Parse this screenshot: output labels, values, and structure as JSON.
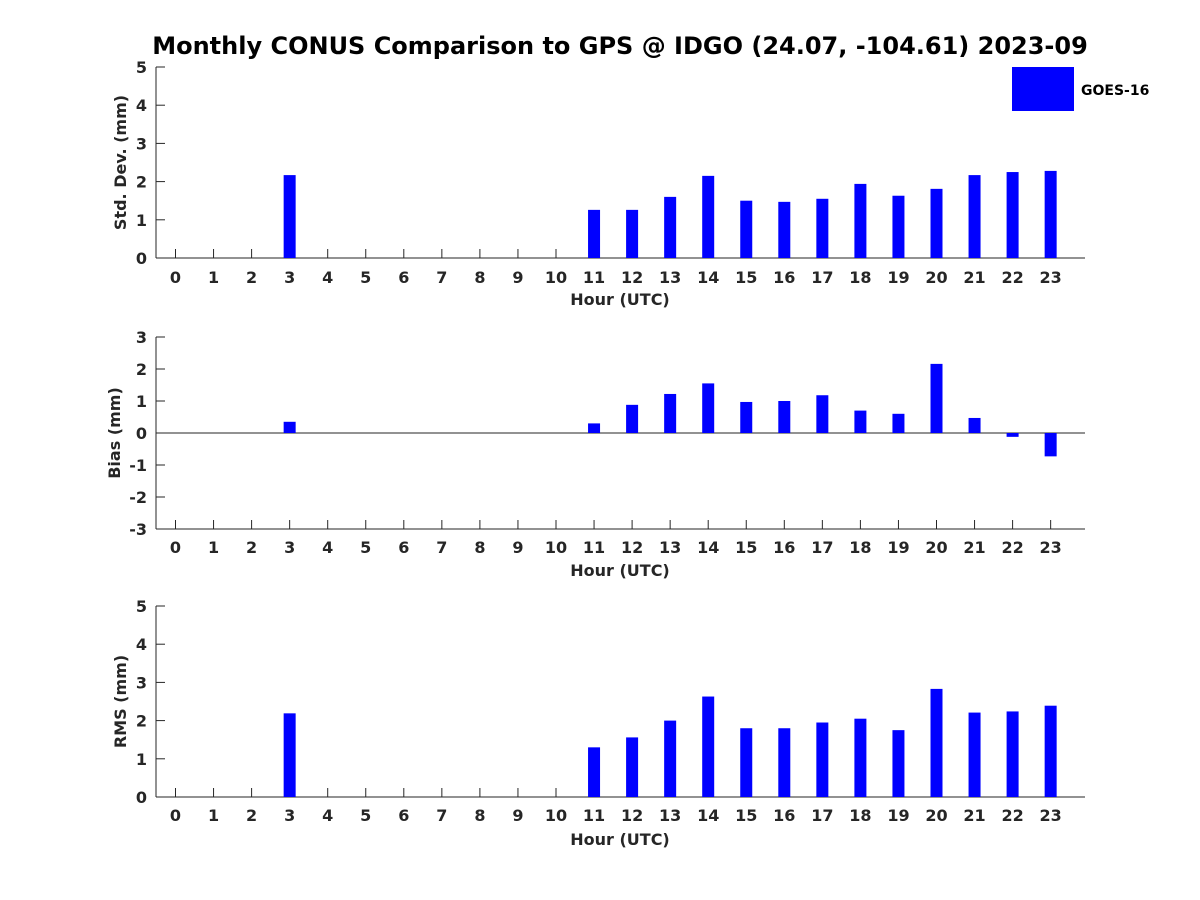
{
  "chart_data": [
    {
      "type": "bar",
      "title": "Monthly CONUS Comparison to GPS @ IDGO (24.07, -104.61) 2023-09",
      "xlabel": "Hour (UTC)",
      "ylabel": "Std. Dev. (mm)",
      "categories": [
        "0",
        "1",
        "2",
        "3",
        "4",
        "5",
        "6",
        "7",
        "8",
        "9",
        "10",
        "11",
        "12",
        "13",
        "14",
        "15",
        "16",
        "17",
        "18",
        "19",
        "20",
        "21",
        "22",
        "23"
      ],
      "ylim": [
        0,
        5
      ],
      "yticks": [
        "0",
        "1",
        "2",
        "3",
        "4",
        "5"
      ],
      "series": [
        {
          "name": "GOES-16",
          "color": "#0000ff",
          "values": [
            null,
            null,
            null,
            2.17,
            null,
            null,
            null,
            null,
            null,
            null,
            null,
            1.26,
            1.26,
            1.6,
            2.15,
            1.5,
            1.47,
            1.55,
            1.94,
            1.63,
            1.81,
            2.17,
            2.25,
            2.28
          ]
        }
      ],
      "legend": {
        "position": "top-right",
        "labels": [
          "GOES-16"
        ]
      }
    },
    {
      "type": "bar",
      "xlabel": "Hour (UTC)",
      "ylabel": "Bias (mm)",
      "categories": [
        "0",
        "1",
        "2",
        "3",
        "4",
        "5",
        "6",
        "7",
        "8",
        "9",
        "10",
        "11",
        "12",
        "13",
        "14",
        "15",
        "16",
        "17",
        "18",
        "19",
        "20",
        "21",
        "22",
        "23"
      ],
      "ylim": [
        -3,
        3
      ],
      "yticks": [
        "-3",
        "-2",
        "-1",
        "0",
        "1",
        "2",
        "3"
      ],
      "series": [
        {
          "name": "GOES-16",
          "color": "#0000ff",
          "values": [
            null,
            null,
            null,
            0.35,
            null,
            null,
            null,
            null,
            null,
            null,
            null,
            0.3,
            0.88,
            1.22,
            1.55,
            0.97,
            1.0,
            1.18,
            0.7,
            0.6,
            2.16,
            0.47,
            -0.12,
            -0.73
          ]
        }
      ]
    },
    {
      "type": "bar",
      "xlabel": "Hour (UTC)",
      "ylabel": "RMS (mm)",
      "categories": [
        "0",
        "1",
        "2",
        "3",
        "4",
        "5",
        "6",
        "7",
        "8",
        "9",
        "10",
        "11",
        "12",
        "13",
        "14",
        "15",
        "16",
        "17",
        "18",
        "19",
        "20",
        "21",
        "22",
        "23"
      ],
      "ylim": [
        0,
        5
      ],
      "yticks": [
        "0",
        "1",
        "2",
        "3",
        "4",
        "5"
      ],
      "series": [
        {
          "name": "GOES-16",
          "color": "#0000ff",
          "values": [
            null,
            null,
            null,
            2.19,
            null,
            null,
            null,
            null,
            null,
            null,
            null,
            1.3,
            1.56,
            2.0,
            2.63,
            1.8,
            1.8,
            1.95,
            2.05,
            1.75,
            2.83,
            2.21,
            2.24,
            2.39
          ]
        }
      ]
    }
  ]
}
